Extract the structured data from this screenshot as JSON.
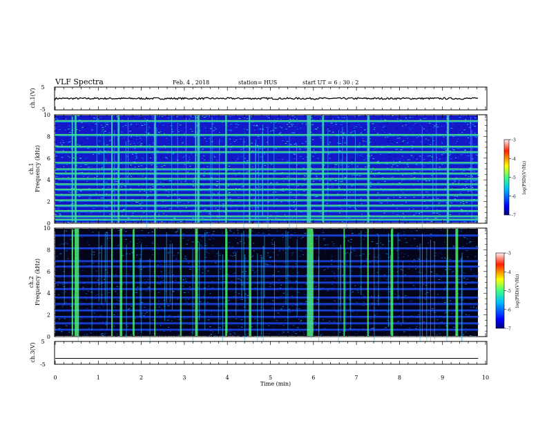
{
  "header": {
    "title": "VLF Spectra",
    "date": "Feb. 4 , 2018",
    "station": "station= HUS",
    "start": "start UT = 6 : 30 : 2"
  },
  "chart_data": [
    {
      "type": "line",
      "panel": "ch.1",
      "ylabel": "ch.1(V)",
      "yticks": [
        "5",
        "-5"
      ],
      "ylim": [
        -5,
        5
      ],
      "series": [
        {
          "x": [
            0,
            9.83
          ],
          "y": [
            0,
            0
          ]
        }
      ]
    },
    {
      "type": "heatmap",
      "panel": "ch.1",
      "ylabel_top": "ch.1",
      "ylabel": "Frequency (kHz)",
      "yticks": [
        "0",
        "2",
        "4",
        "6",
        "8",
        "10"
      ],
      "ylim": [
        0,
        10
      ],
      "xlim": [
        0,
        10
      ],
      "data_end_min": 9.83,
      "colorbar": {
        "label": "log(PSD)(V²/Hz)",
        "ticks": [
          "-3",
          "-4",
          "-5",
          "-6",
          "-7"
        ],
        "range": [
          -7,
          -3
        ]
      },
      "bands_khz": [
        0.3,
        0.6,
        1.1,
        1.6,
        2.1,
        2.6,
        3.1,
        3.6,
        4.1,
        4.6,
        5.0,
        5.6,
        6.6,
        7.1,
        8.2,
        9.5
      ],
      "spikes_min": [
        0.38,
        0.45,
        1.3,
        1.45,
        2.3,
        3.25,
        3.3,
        3.95,
        4.5,
        5.85,
        5.9,
        6.2,
        7.25,
        9.1
      ]
    },
    {
      "type": "heatmap",
      "panel": "ch.2",
      "ylabel_top": "ch.2",
      "ylabel": "Frequency (kHz)",
      "yticks": [
        "0",
        "2",
        "4",
        "6",
        "8",
        "10"
      ],
      "ylim": [
        0,
        10
      ],
      "xlim": [
        0,
        10
      ],
      "data_end_min": 9.83,
      "colorbar": {
        "label": "log(PSD)(V²/Hz)",
        "ticks": [
          "-3",
          "-4",
          "-5",
          "-6",
          "-7"
        ],
        "range": [
          -7,
          -3
        ]
      },
      "bands_khz": [
        0.6,
        1.2,
        1.8,
        2.4,
        3.0,
        3.6,
        4.4,
        5.0,
        5.6,
        6.5,
        7.0,
        8.2,
        9.4
      ],
      "spikes_min": [
        0.38,
        0.45,
        0.5,
        1.3,
        1.5,
        1.8,
        2.3,
        2.9,
        3.25,
        3.95,
        4.5,
        5.85,
        5.9,
        5.95,
        6.7,
        7.25,
        7.8,
        9.1,
        9.3
      ]
    },
    {
      "type": "line",
      "panel": "ch.3",
      "ylabel": "ch.3(V)",
      "yticks": [
        "5",
        "-5"
      ],
      "ylim": [
        -5,
        5
      ],
      "xlabel": "Time (min)",
      "xticks": [
        "0",
        "1",
        "2",
        "3",
        "4",
        "5",
        "6",
        "7",
        "8",
        "9",
        "10"
      ],
      "xlim": [
        0,
        10
      ],
      "series": [
        {
          "x": [
            0,
            9.83
          ],
          "y": [
            -2.5,
            -2.5
          ]
        }
      ]
    }
  ]
}
